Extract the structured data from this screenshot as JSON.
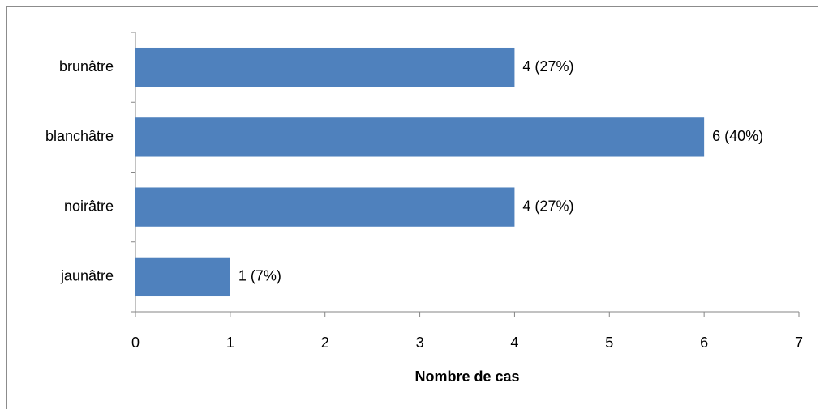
{
  "chart_data": {
    "type": "bar",
    "orientation": "horizontal",
    "categories": [
      "brunâtre",
      "blanchâtre",
      "noirâtre",
      "jaunâtre"
    ],
    "values": [
      4,
      6,
      4,
      1
    ],
    "value_labels": [
      "4 (27%)",
      "6 (40%)",
      "4 (27%)",
      "1 (7%)"
    ],
    "color": "#4f81bd",
    "xlabel": "Nombre de cas",
    "xlim": [
      0,
      7
    ],
    "xticks": [
      0,
      1,
      2,
      3,
      4,
      5,
      6,
      7
    ],
    "grid": false
  }
}
